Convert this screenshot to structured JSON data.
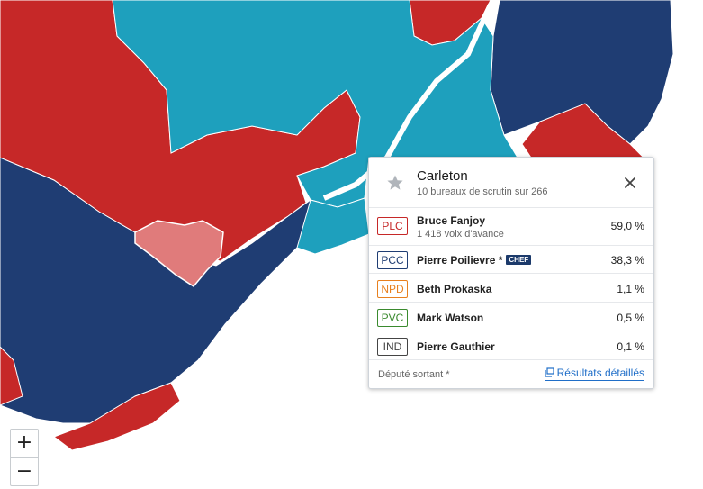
{
  "map": {
    "colors": {
      "plc": "#c62828",
      "pcc": "#1f3d73",
      "bloc": "#1ea0bd",
      "selected": "#e07b7b",
      "water": "#ffffff",
      "border": "#ffffff"
    },
    "zoom_in_label": "+",
    "zoom_out_label": "−"
  },
  "popup": {
    "title": "Carleton",
    "subtitle": "10 bureaux de scrutin sur 266",
    "star_icon": "star-icon",
    "close_icon": "close-icon",
    "candidates": [
      {
        "party": "PLC",
        "name": "Bruce Fanjoy",
        "lead": "1 418 voix d'avance",
        "pct": "59,0 %",
        "color": "#c62828"
      },
      {
        "party": "PCC",
        "name": "Pierre Poilievre *",
        "badge": "CHEF",
        "pct": "38,3 %",
        "color": "#1f3d73"
      },
      {
        "party": "NPD",
        "name": "Beth Prokaska",
        "pct": "1,1 %",
        "color": "#e8801e"
      },
      {
        "party": "PVC",
        "name": "Mark Watson",
        "pct": "0,5 %",
        "color": "#3a8a2e"
      },
      {
        "party": "IND",
        "name": "Pierre Gauthier",
        "pct": "0,1 %",
        "color": "#444444"
      }
    ],
    "footer_note": "Député sortant *",
    "details_link": "Résultats détaillés"
  }
}
